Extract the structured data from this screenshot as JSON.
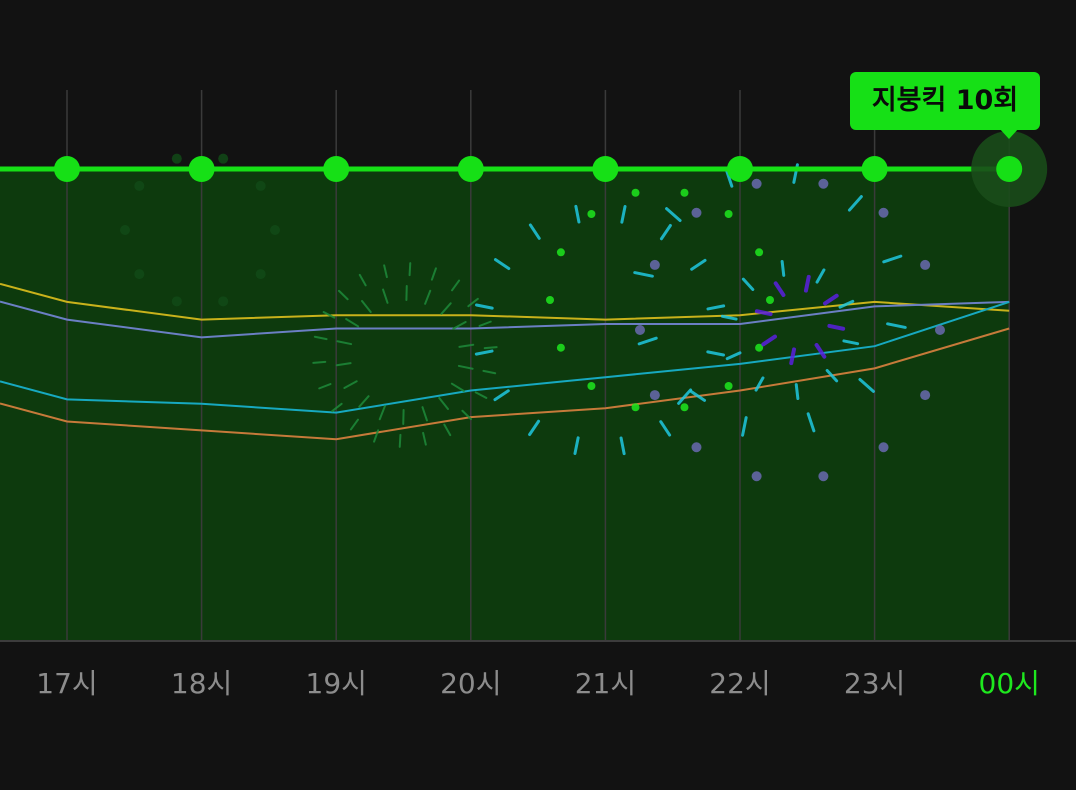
{
  "chart_data": {
    "type": "line",
    "categories": [
      "17시",
      "18시",
      "19시",
      "20시",
      "21시",
      "22시",
      "23시",
      "00시"
    ],
    "active_category": "00시",
    "main_series": {
      "values": [
        10,
        10,
        10,
        10,
        10,
        10,
        10,
        10
      ],
      "color": "#16e016"
    },
    "series": [
      {
        "values": [
          7.0,
          6.6,
          6.7,
          6.7,
          6.6,
          6.7,
          7.0,
          6.8
        ],
        "color": "#c9b21b"
      },
      {
        "values": [
          6.6,
          6.2,
          6.4,
          6.4,
          6.5,
          6.5,
          6.9,
          7.0
        ],
        "color": "#6b7fc4"
      },
      {
        "values": [
          4.8,
          4.7,
          4.5,
          5.0,
          5.3,
          5.6,
          6.0,
          7.0
        ],
        "color": "#17a9c0"
      },
      {
        "values": [
          4.3,
          4.1,
          3.9,
          4.4,
          4.6,
          5.0,
          5.5,
          6.4
        ],
        "color": "#c67a3a"
      }
    ],
    "tooltip": {
      "text": "지붕킥 10회",
      "category": "00시"
    },
    "grid": "vertical",
    "colors": {
      "background": "#121212",
      "area_fill": "#0d3a0d",
      "grid_line": "#3a3a3a",
      "axis_label": "#8c8c8c",
      "active_label": "#1ee81e"
    }
  },
  "decoration": {
    "fireworks_colors": [
      "#1ee81e",
      "#1fc8e0",
      "#5a1fe0",
      "#6a6ab0"
    ]
  }
}
